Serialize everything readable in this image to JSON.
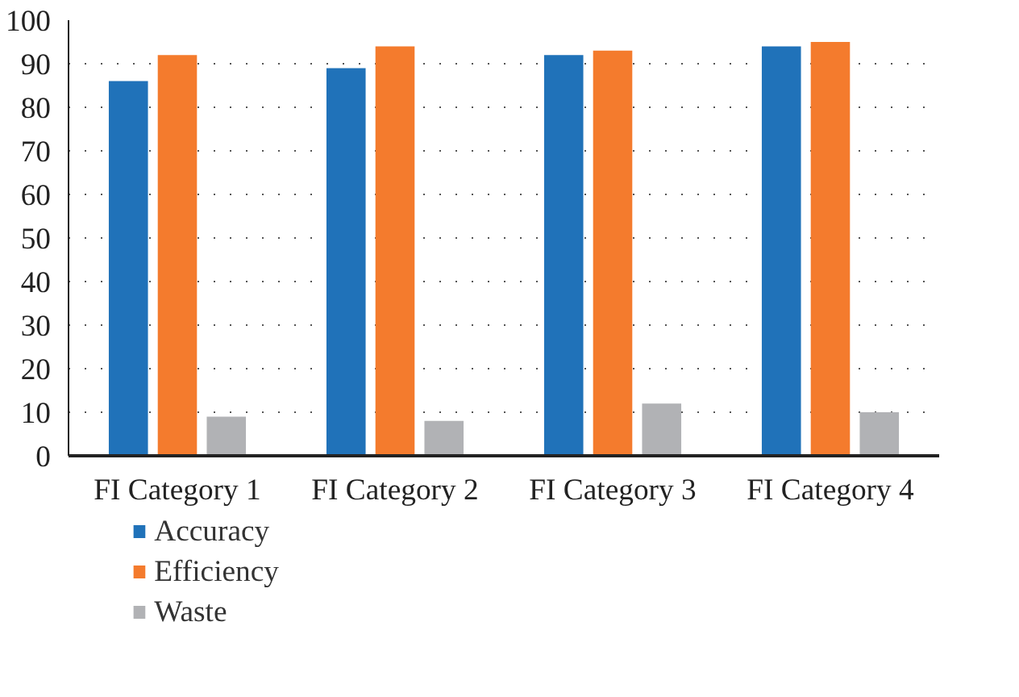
{
  "chart_data": {
    "type": "bar",
    "categories": [
      "FI Category 1",
      "FI Category 2",
      "FI Category 3",
      "FI Category 4"
    ],
    "series": [
      {
        "name": "Accuracy",
        "color": "#2072b9",
        "values": [
          86,
          89,
          92,
          94
        ]
      },
      {
        "name": "Efficiency",
        "color": "#f47b2d",
        "values": [
          92,
          94,
          93,
          95
        ]
      },
      {
        "name": "Waste",
        "color": "#b1b2b5",
        "values": [
          9,
          8,
          12,
          10
        ]
      }
    ],
    "ylim": [
      0,
      100
    ],
    "yticks": [
      0,
      10,
      20,
      30,
      40,
      50,
      60,
      70,
      80,
      90,
      100
    ],
    "grid": "y",
    "legend": "bottom left"
  }
}
